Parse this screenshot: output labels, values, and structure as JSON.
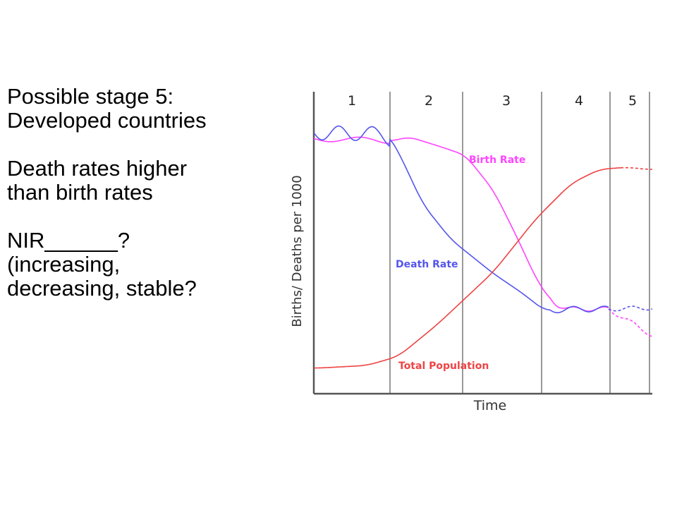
{
  "slide": {
    "lines": [
      "Possible stage 5:",
      "Developed countries",
      "",
      "Death rates higher",
      "than birth rates",
      "",
      "NIR______?",
      "(increasing,",
      "decreasing, stable?"
    ]
  },
  "chart": {
    "stage_labels": [
      "1",
      "2",
      "3",
      "4",
      "5"
    ],
    "ylabel": "Births/ Deaths per 1000",
    "xlabel": "Time",
    "birth_label": "Birth Rate",
    "death_label": "Death Rate",
    "population_label": "Total Population",
    "colors": {
      "birth": "#ff44ff",
      "death": "#5555ee",
      "population": "#ee4444",
      "grid": "#999999",
      "axis": "#555555"
    }
  },
  "chart_data": {
    "type": "line",
    "title": "",
    "xlabel": "Time",
    "ylabel": "Births/ Deaths per 1000",
    "stages": [
      "1",
      "2",
      "3",
      "4",
      "5"
    ],
    "series": [
      {
        "name": "Birth Rate",
        "trend": [
          "high",
          "high",
          "falling",
          "low",
          "low"
        ],
        "stage5_projection": "dashed, declining"
      },
      {
        "name": "Death Rate",
        "trend": [
          "high",
          "falling",
          "falling",
          "low",
          "low"
        ],
        "stage5_projection": "dashed, slightly rising"
      },
      {
        "name": "Total Population",
        "trend": [
          "low",
          "rising",
          "rising steeply",
          "rising slowly",
          "leveling"
        ],
        "stage5_projection": "dashed, slightly falling"
      }
    ],
    "grid": true
  }
}
